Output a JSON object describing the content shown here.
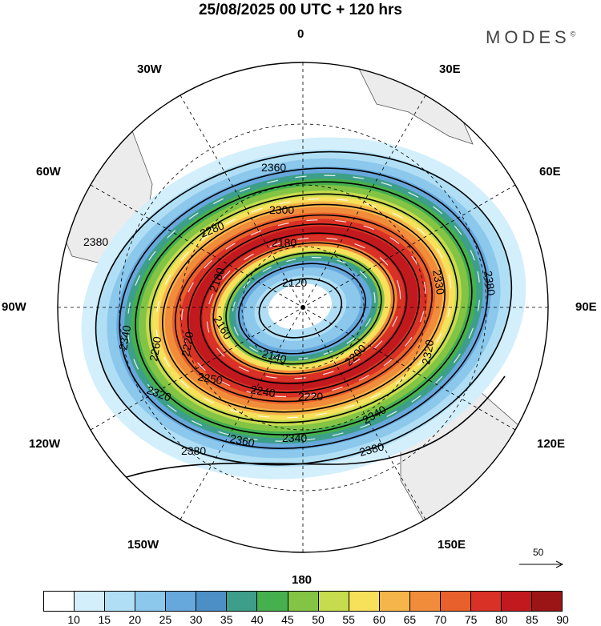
{
  "title": "25/08/2025  00 UTC  + 120 hrs",
  "brand": "MODES",
  "brand_mark": "©",
  "meridian_labels": {
    "n0": "0",
    "w30": "30W",
    "e30": "30E",
    "w60": "60W",
    "e60": "60E",
    "w90": "90W",
    "e90": "90E",
    "w120": "120W",
    "e120": "120E",
    "w150": "150W",
    "e150": "150E",
    "s180": "180"
  },
  "contour_labels": [
    {
      "id": "c2360a",
      "text": "2360"
    },
    {
      "id": "c2380w",
      "text": "2380"
    },
    {
      "id": "c2300",
      "text": "2300"
    },
    {
      "id": "c2280",
      "text": "2280"
    },
    {
      "id": "c2180a",
      "text": "2180"
    },
    {
      "id": "c2180b",
      "text": "2180"
    },
    {
      "id": "c2120",
      "text": "2120"
    },
    {
      "id": "c2330",
      "text": "2330"
    },
    {
      "id": "c2380e",
      "text": "2380"
    },
    {
      "id": "c2340w",
      "text": "2340"
    },
    {
      "id": "c2260",
      "text": "2260"
    },
    {
      "id": "c2220",
      "text": "2220"
    },
    {
      "id": "c2160",
      "text": "2160"
    },
    {
      "id": "c2140",
      "text": "2140"
    },
    {
      "id": "c2320e",
      "text": "2320"
    },
    {
      "id": "c2200",
      "text": "2200"
    },
    {
      "id": "c2250",
      "text": "2250"
    },
    {
      "id": "c2240",
      "text": "2240"
    },
    {
      "id": "c2220b",
      "text": "2220"
    },
    {
      "id": "c2320w",
      "text": "2320"
    },
    {
      "id": "c2340s",
      "text": "2340"
    },
    {
      "id": "c2340e",
      "text": "2340"
    },
    {
      "id": "c2360s",
      "text": "2360"
    },
    {
      "id": "c2380sw",
      "text": "2380"
    },
    {
      "id": "c2380se",
      "text": "2380"
    }
  ],
  "scale_vector": "50",
  "legend": {
    "ticks": [
      "10",
      "15",
      "20",
      "25",
      "30",
      "35",
      "40",
      "45",
      "50",
      "55",
      "60",
      "65",
      "70",
      "75",
      "80",
      "85",
      "90"
    ],
    "colors": [
      "#ffffff",
      "#d3effb",
      "#b0dff5",
      "#8cc8ec",
      "#67a8dc",
      "#4c8fc7",
      "#3d9e8a",
      "#46b04e",
      "#84c444",
      "#c6dc4e",
      "#f7e05a",
      "#f6b54a",
      "#f08c3a",
      "#e8602c",
      "#d93125",
      "#c2191f",
      "#9b1416"
    ]
  }
}
